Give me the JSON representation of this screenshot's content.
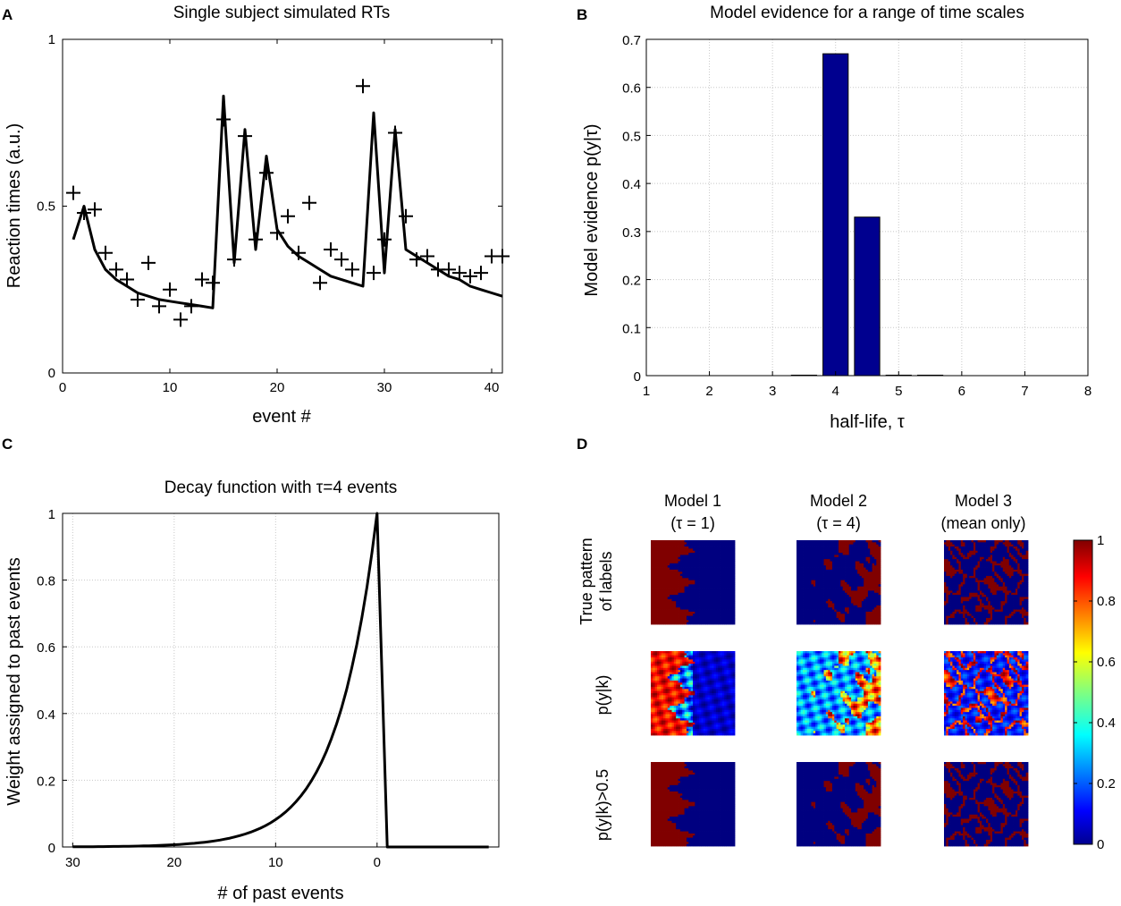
{
  "chart_data": [
    {
      "panel": "A",
      "type": "line",
      "title": "Single subject simulated RTs",
      "xlabel": "event #",
      "ylabel": "Reaction times (a.u.)",
      "xlim": [
        0,
        41
      ],
      "ylim": [
        0,
        1
      ],
      "xticks": [
        "0",
        "10",
        "20",
        "30",
        "40"
      ],
      "yticks": [
        "0",
        "0.5",
        "1"
      ],
      "series": [
        {
          "name": "observed",
          "style": "markers-plus",
          "x": [
            1,
            2,
            3,
            4,
            5,
            6,
            7,
            8,
            9,
            10,
            11,
            12,
            13,
            14,
            15,
            16,
            17,
            18,
            19,
            20,
            21,
            22,
            23,
            24,
            25,
            26,
            27,
            28,
            29,
            30,
            31,
            32,
            33,
            34,
            35,
            36,
            37,
            38,
            39,
            40,
            41
          ],
          "y": [
            0.54,
            0.48,
            0.49,
            0.36,
            0.31,
            0.28,
            0.22,
            0.33,
            0.2,
            0.25,
            0.16,
            0.2,
            0.28,
            0.27,
            0.76,
            0.34,
            0.71,
            0.4,
            0.6,
            0.42,
            0.47,
            0.36,
            0.51,
            0.27,
            0.37,
            0.34,
            0.31,
            0.86,
            0.3,
            0.4,
            0.72,
            0.47,
            0.34,
            0.35,
            0.31,
            0.31,
            0.3,
            0.29,
            0.3,
            0.35,
            0.35
          ]
        },
        {
          "name": "model fit",
          "style": "solid",
          "x": [
            1,
            2,
            3,
            4,
            5,
            6,
            7,
            8,
            9,
            10,
            11,
            12,
            13,
            14,
            15,
            16,
            17,
            18,
            19,
            20,
            21,
            22,
            23,
            24,
            25,
            26,
            27,
            28,
            29,
            30,
            31,
            32,
            33,
            34,
            35,
            36,
            37,
            38,
            39,
            40,
            41
          ],
          "y": [
            0.4,
            0.5,
            0.37,
            0.31,
            0.28,
            0.26,
            0.24,
            0.23,
            0.22,
            0.215,
            0.21,
            0.205,
            0.2,
            0.195,
            0.83,
            0.33,
            0.73,
            0.37,
            0.65,
            0.43,
            0.38,
            0.35,
            0.33,
            0.31,
            0.29,
            0.28,
            0.27,
            0.26,
            0.78,
            0.3,
            0.73,
            0.37,
            0.35,
            0.33,
            0.31,
            0.29,
            0.28,
            0.26,
            0.25,
            0.24,
            0.23
          ]
        }
      ]
    },
    {
      "panel": "B",
      "type": "bar",
      "title": "Model evidence for a range of time scales",
      "xlabel": "half-life, τ",
      "ylabel": "Model evidence p(y|τ)",
      "xlim": [
        1,
        8
      ],
      "ylim": [
        0,
        0.7
      ],
      "xticks": [
        "1",
        "2",
        "3",
        "4",
        "5",
        "6",
        "7",
        "8"
      ],
      "yticks": [
        "0",
        "0.1",
        "0.2",
        "0.3",
        "0.4",
        "0.5",
        "0.6",
        "0.7"
      ],
      "bar_color": "#00008f",
      "x": [
        3.5,
        4.0,
        4.5,
        5.0,
        5.5
      ],
      "values": [
        0.001,
        0.67,
        0.33,
        0.001,
        0.001
      ]
    },
    {
      "panel": "C",
      "type": "line",
      "title": "Decay function with τ=4 events",
      "xlabel": "# of past events",
      "ylabel": "Weight assigned to past events",
      "xlim": [
        31,
        -12
      ],
      "ylim": [
        0,
        1
      ],
      "xticks": [
        "30",
        "20",
        "10",
        "0"
      ],
      "yticks": [
        "0",
        "0.2",
        "0.4",
        "0.6",
        "0.8",
        "1"
      ],
      "decay": {
        "tau": 4,
        "x_start": 30,
        "x_peak": 0,
        "x_drop": -1,
        "x_end": -11
      }
    },
    {
      "panel": "D",
      "type": "heatmap",
      "columns": [
        {
          "line1": "Model 1",
          "line2": "(τ = 1)"
        },
        {
          "line1": "Model 2",
          "line2": "(τ = 4)"
        },
        {
          "line1": "Model 3",
          "line2": "(mean only)"
        }
      ],
      "rows": [
        {
          "line1": "True pattern",
          "line2": "of labels"
        },
        {
          "line1": "p(y|k)",
          "line2": ""
        },
        {
          "line1": "p(y|k)>0.5",
          "line2": ""
        }
      ],
      "colorbar_ticks": [
        "0",
        "0.2",
        "0.4",
        "0.6",
        "0.8",
        "1"
      ],
      "colormap": "jet",
      "clim": [
        0,
        1
      ]
    }
  ]
}
